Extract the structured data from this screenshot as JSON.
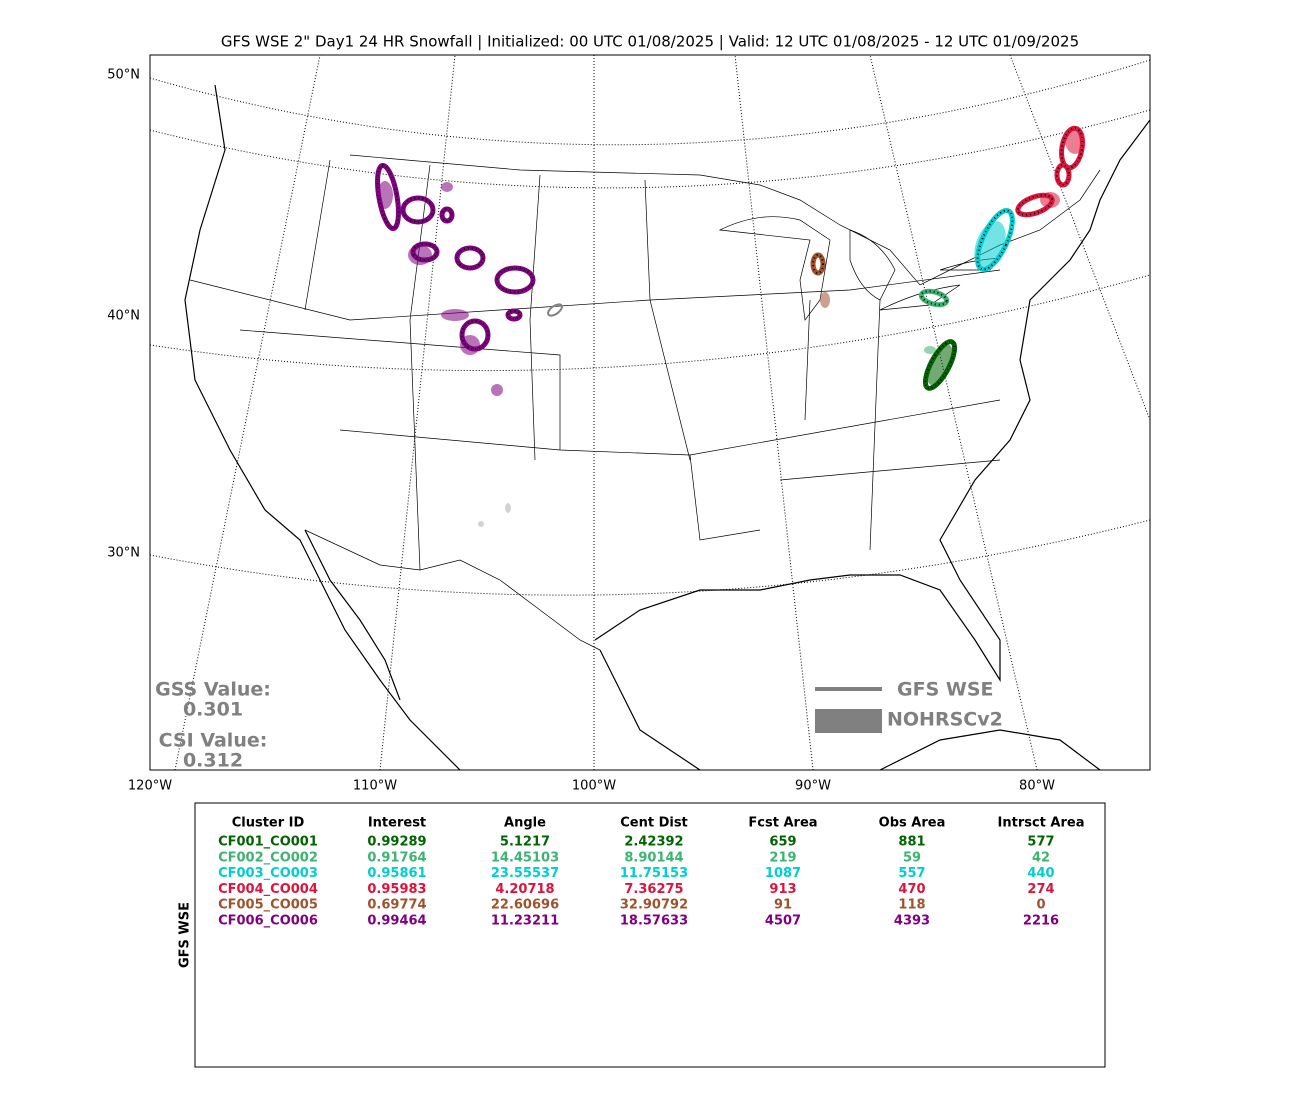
{
  "title": "GFS WSE 2\" Day1 24 HR Snowfall | Initialized: 00 UTC 01/08/2025 | Valid: 12 UTC 01/08/2025 - 12 UTC 01/09/2025",
  "map": {
    "lat_labels": [
      "50°N",
      "40°N",
      "30°N"
    ],
    "lon_labels": [
      "120°W",
      "110°W",
      "100°W",
      "90°W",
      "80°W"
    ],
    "stats": [
      {
        "label": "GSS Value:",
        "value": "0.301"
      },
      {
        "label": "CSI Value:",
        "value": "0.312"
      }
    ],
    "legend": [
      "GFS WSE",
      "NOHRSCv2"
    ]
  },
  "table": {
    "side_label": "GFS WSE",
    "columns": [
      "Cluster ID",
      "Interest",
      "Angle",
      "Cent Dist",
      "Fcst Area",
      "Obs Area",
      "Intrsct Area"
    ],
    "rows": [
      {
        "color": "#006400",
        "cells": [
          "CF001_CO001",
          "0.99289",
          "5.1217",
          "2.42392",
          "659",
          "881",
          "577"
        ]
      },
      {
        "color": "#3cb371",
        "cells": [
          "CF002_CO002",
          "0.91764",
          "14.45103",
          "8.90144",
          "219",
          "59",
          "42"
        ]
      },
      {
        "color": "#00ced1",
        "cells": [
          "CF003_CO003",
          "0.95861",
          "23.55537",
          "11.75153",
          "1087",
          "557",
          "440"
        ]
      },
      {
        "color": "#dc143c",
        "cells": [
          "CF004_CO004",
          "0.95983",
          "4.20718",
          "7.36275",
          "913",
          "470",
          "274"
        ]
      },
      {
        "color": "#a0522d",
        "cells": [
          "CF005_CO005",
          "0.69774",
          "22.60696",
          "32.90792",
          "91",
          "118",
          "0"
        ]
      },
      {
        "color": "#800080",
        "cells": [
          "CF006_CO006",
          "0.99464",
          "11.23211",
          "18.57633",
          "4507",
          "4393",
          "2216"
        ]
      }
    ]
  }
}
